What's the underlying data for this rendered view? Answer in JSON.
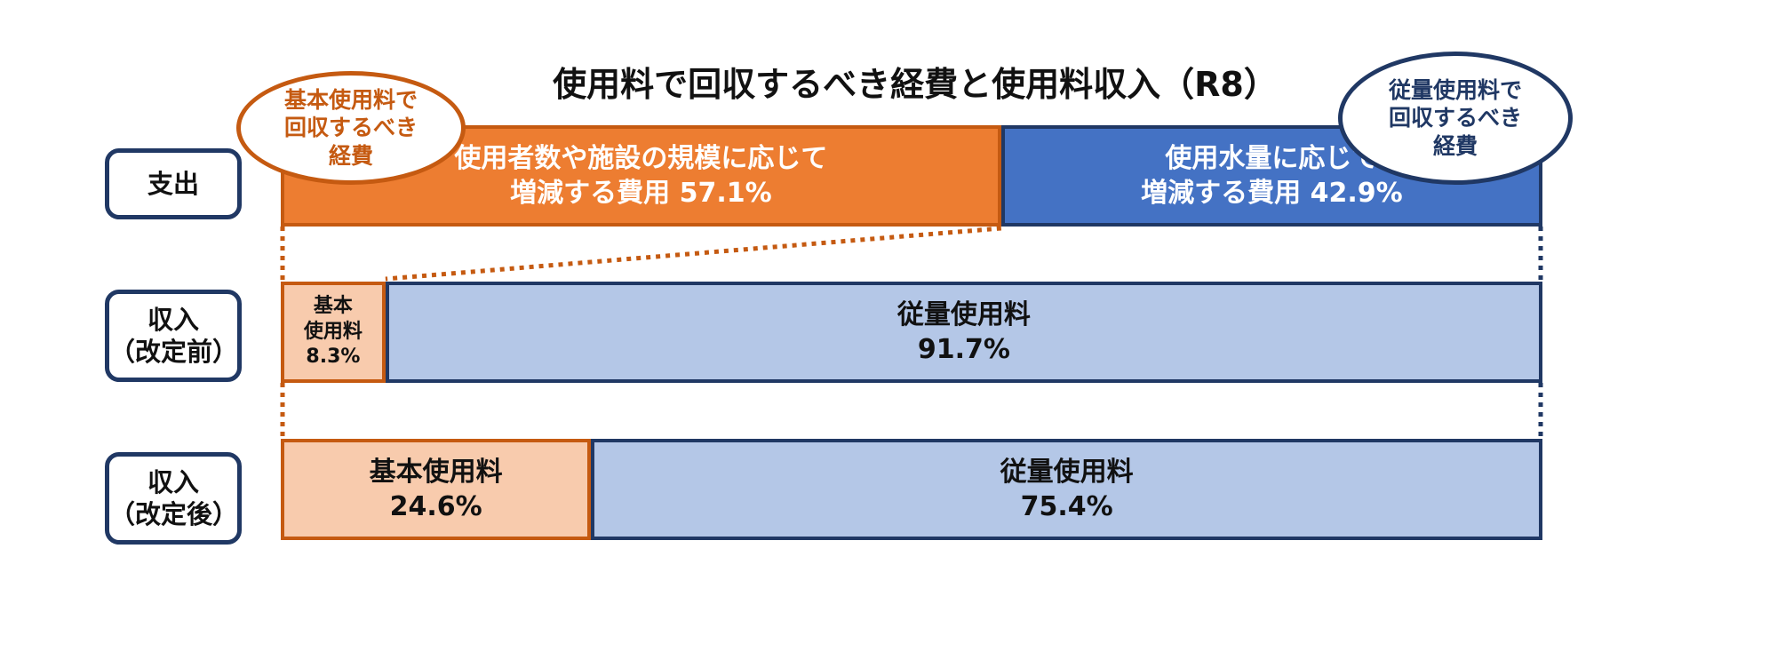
{
  "title": "使用料で回収するべき経費と使用料収入（R8）",
  "colors": {
    "orange": "#ed7d31",
    "blue": "#4472c4",
    "light_orange": "#f8cbad",
    "light_blue": "#b4c7e7",
    "navy": "#203864",
    "brown": "#c55a11"
  },
  "rows": {
    "expense": {
      "label": [
        "支出"
      ]
    },
    "before": {
      "label": [
        "収入",
        "（改定前）"
      ]
    },
    "after": {
      "label": [
        "収入",
        "（改定後）"
      ]
    }
  },
  "bubbles": {
    "basic": [
      "基本使用料で",
      "回収するべき",
      "経費"
    ],
    "volume": [
      "従量使用料で",
      "回収するべき",
      "経費"
    ]
  },
  "chart_data": {
    "type": "bar",
    "stacked": true,
    "orientation": "horizontal",
    "title": "使用料で回収するべき経費と使用料収入（R8）",
    "categories": [
      "支出",
      "収入（改定前）",
      "収入（改定後）"
    ],
    "unit": "%",
    "series": [
      {
        "values": [
          57.1,
          8.3,
          24.6
        ],
        "labels": [
          [
            "使用者数や施設の規模に応じて",
            "増減する費用  57.1%"
          ],
          [
            "基本",
            "使用料",
            "8.3%"
          ],
          [
            "基本使用料",
            "24.6%"
          ]
        ]
      },
      {
        "values": [
          42.9,
          91.7,
          75.4
        ],
        "labels": [
          [
            "使用水量に応じて",
            "増減する費用  42.9%"
          ],
          [
            "従量使用料",
            "91.7%"
          ],
          [
            "従量使用料",
            "75.4%"
          ]
        ]
      }
    ]
  }
}
